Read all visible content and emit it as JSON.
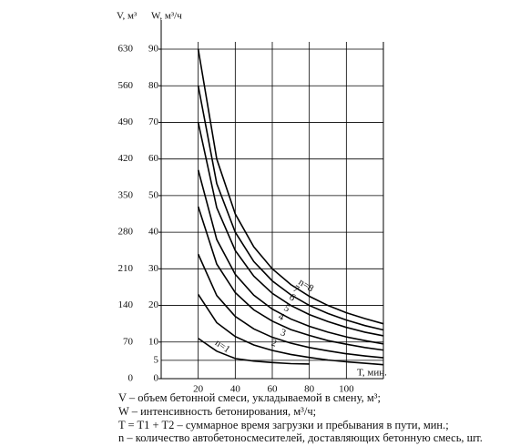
{
  "chart_data": {
    "type": "line",
    "y_label": "W, м³/ч",
    "y2_label": "V, м³",
    "x_label": "T, мин.",
    "x": [
      20,
      30,
      40,
      50,
      60,
      70,
      80,
      90,
      100,
      110,
      120
    ],
    "xlim": [
      0,
      120
    ],
    "xticks": [
      20,
      40,
      60,
      80,
      100
    ],
    "ylim": [
      0,
      90
    ],
    "yticks": [
      0,
      5,
      10,
      20,
      30,
      40,
      50,
      60,
      70,
      80,
      90
    ],
    "y2lim": [
      0,
      630
    ],
    "y2ticks": [
      0,
      70,
      140,
      210,
      280,
      350,
      420,
      490,
      560,
      630
    ],
    "grid": true,
    "series": [
      {
        "name": "n=1",
        "color": "#000000",
        "values": [
          11,
          7.5,
          5.5,
          4.8,
          4.4,
          4.1,
          4,
          null,
          null,
          null,
          null
        ]
      },
      {
        "name": "2",
        "color": "#000000",
        "values": [
          23,
          15.3,
          11.5,
          9.2,
          7.7,
          6.6,
          5.8,
          5.1,
          4.6,
          4.2,
          3.8
        ]
      },
      {
        "name": "3",
        "color": "#000000",
        "values": [
          34,
          22.7,
          17,
          13.6,
          11.3,
          9.7,
          8.5,
          7.6,
          6.8,
          6.2,
          5.7
        ]
      },
      {
        "name": "4",
        "color": "#000000",
        "values": [
          47,
          31.3,
          23.5,
          18.8,
          15.7,
          13.4,
          11.8,
          10.4,
          9.4,
          8.5,
          7.8
        ]
      },
      {
        "name": "5",
        "color": "#000000",
        "values": [
          57,
          38,
          28.5,
          22.8,
          19,
          16.3,
          14.3,
          12.7,
          11.4,
          10.4,
          9.5
        ]
      },
      {
        "name": "6",
        "color": "#000000",
        "values": [
          70,
          46.7,
          35,
          28,
          23.3,
          20,
          17.5,
          15.6,
          14,
          12.7,
          11.7
        ]
      },
      {
        "name": "7",
        "color": "#000000",
        "values": [
          80,
          53.3,
          40,
          32,
          26.7,
          22.9,
          20,
          17.8,
          16,
          14.5,
          13.3
        ]
      },
      {
        "name": "n=8",
        "color": "#000000",
        "values": [
          90,
          60,
          45,
          36,
          30,
          25.7,
          22.5,
          20,
          18,
          16.4,
          15
        ]
      }
    ],
    "notes": [
      "V – объем бетонной смеси, укладываемой в смену, м³;",
      "W – интенсивность бетонирования, м³/ч;",
      "T = T1 + T2 – суммарное время загрузки и пребывания в пути, мин.;",
      "n – количество автобетоносмесителей, доставляющих бетонную смесь, шт."
    ]
  }
}
